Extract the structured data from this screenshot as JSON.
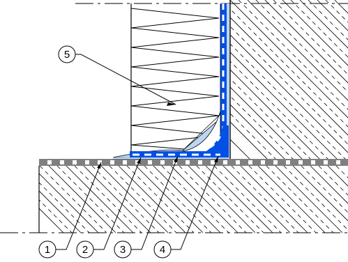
{
  "callouts": [
    {
      "id": "1",
      "label": "1"
    },
    {
      "id": "2",
      "label": "2"
    },
    {
      "id": "3",
      "label": "3"
    },
    {
      "id": "4",
      "label": "4"
    },
    {
      "id": "5",
      "label": "5"
    }
  ],
  "colors": {
    "line": "#000000",
    "membrane_light": "#bcd6f2",
    "membrane_mid": "#3b8ee8",
    "membrane_dark": "#0050e6",
    "sheet_gray": "#808080"
  }
}
